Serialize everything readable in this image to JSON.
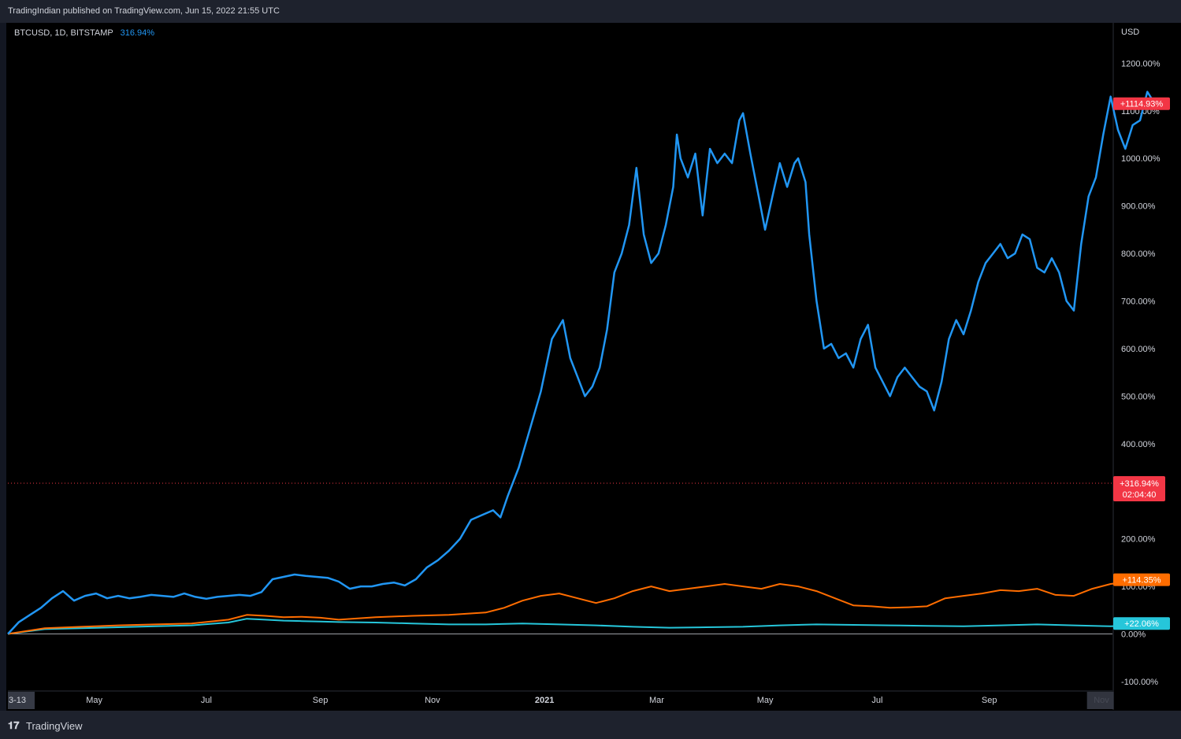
{
  "header": {
    "publisher_text": "TradingIndian published on TradingView.com, Jun 15, 2022 21:55 UTC"
  },
  "legend": {
    "symbol": "BTCUSD, 1D, BITSTAMP",
    "value": "316.94%"
  },
  "footer": {
    "logo_icon": "tradingview-logo-icon",
    "logo_text": "TradingView"
  },
  "colors": {
    "btc": "#2196f3",
    "orange": "#ff6d00",
    "teal": "#26c6da",
    "current_label": "#f23645",
    "axis_bg": "#000000"
  },
  "chart_data": {
    "type": "line",
    "ylabel": "USD",
    "y_ticks": [
      "-100.00%",
      "0.00%",
      "100.00%",
      "200.00%",
      "400.00%",
      "500.00%",
      "600.00%",
      "700.00%",
      "800.00%",
      "900.00%",
      "1000.00%",
      "1100.00%",
      "1200.00%"
    ],
    "y_tick_values": [
      -100,
      0,
      100,
      200,
      400,
      500,
      600,
      700,
      800,
      900,
      1000,
      1100,
      1200
    ],
    "ylim": [
      -120,
      1285
    ],
    "x_ticks": [
      "3-13",
      "May",
      "Jul",
      "Sep",
      "Nov",
      "2021",
      "Mar",
      "May",
      "Jul",
      "Sep",
      "Nov"
    ],
    "x_tick_positions": [
      0,
      47,
      108,
      170,
      231,
      292,
      353,
      412,
      473,
      534,
      595
    ],
    "xlim": [
      0,
      601
    ],
    "series": [
      {
        "name": "BTCUSD",
        "color": "#2196f3",
        "last_label": "+1114.93%",
        "points": [
          [
            0,
            0
          ],
          [
            6,
            25
          ],
          [
            12,
            40
          ],
          [
            18,
            55
          ],
          [
            24,
            75
          ],
          [
            30,
            90
          ],
          [
            36,
            70
          ],
          [
            42,
            80
          ],
          [
            48,
            85
          ],
          [
            54,
            75
          ],
          [
            60,
            80
          ],
          [
            66,
            75
          ],
          [
            72,
            78
          ],
          [
            78,
            82
          ],
          [
            84,
            80
          ],
          [
            90,
            78
          ],
          [
            96,
            85
          ],
          [
            102,
            78
          ],
          [
            108,
            74
          ],
          [
            114,
            78
          ],
          [
            120,
            80
          ],
          [
            126,
            82
          ],
          [
            132,
            80
          ],
          [
            138,
            88
          ],
          [
            144,
            115
          ],
          [
            150,
            120
          ],
          [
            156,
            125
          ],
          [
            162,
            122
          ],
          [
            168,
            120
          ],
          [
            174,
            118
          ],
          [
            180,
            110
          ],
          [
            186,
            95
          ],
          [
            192,
            100
          ],
          [
            198,
            100
          ],
          [
            204,
            105
          ],
          [
            210,
            108
          ],
          [
            216,
            102
          ],
          [
            222,
            115
          ],
          [
            228,
            140
          ],
          [
            234,
            155
          ],
          [
            240,
            175
          ],
          [
            246,
            200
          ],
          [
            252,
            240
          ],
          [
            258,
            250
          ],
          [
            264,
            260
          ],
          [
            268,
            245
          ],
          [
            272,
            290
          ],
          [
            278,
            350
          ],
          [
            284,
            430
          ],
          [
            290,
            510
          ],
          [
            296,
            620
          ],
          [
            302,
            660
          ],
          [
            306,
            580
          ],
          [
            310,
            540
          ],
          [
            314,
            500
          ],
          [
            318,
            520
          ],
          [
            322,
            560
          ],
          [
            326,
            640
          ],
          [
            330,
            760
          ],
          [
            334,
            800
          ],
          [
            338,
            860
          ],
          [
            342,
            980
          ],
          [
            346,
            840
          ],
          [
            350,
            780
          ],
          [
            354,
            800
          ],
          [
            358,
            860
          ],
          [
            362,
            940
          ],
          [
            364,
            1050
          ],
          [
            366,
            1000
          ],
          [
            370,
            960
          ],
          [
            374,
            1010
          ],
          [
            378,
            880
          ],
          [
            382,
            1020
          ],
          [
            386,
            990
          ],
          [
            390,
            1010
          ],
          [
            394,
            990
          ],
          [
            398,
            1080
          ],
          [
            400,
            1095
          ],
          [
            404,
            1010
          ],
          [
            408,
            930
          ],
          [
            412,
            850
          ],
          [
            416,
            920
          ],
          [
            420,
            990
          ],
          [
            424,
            940
          ],
          [
            428,
            990
          ],
          [
            430,
            1000
          ],
          [
            434,
            950
          ],
          [
            436,
            840
          ],
          [
            440,
            700
          ],
          [
            444,
            600
          ],
          [
            448,
            610
          ],
          [
            452,
            580
          ],
          [
            456,
            590
          ],
          [
            460,
            560
          ],
          [
            464,
            620
          ],
          [
            468,
            650
          ],
          [
            472,
            560
          ],
          [
            476,
            530
          ],
          [
            480,
            500
          ],
          [
            484,
            540
          ],
          [
            488,
            560
          ],
          [
            492,
            540
          ],
          [
            496,
            520
          ],
          [
            500,
            510
          ],
          [
            504,
            470
          ],
          [
            508,
            530
          ],
          [
            512,
            620
          ],
          [
            516,
            660
          ],
          [
            520,
            630
          ],
          [
            524,
            680
          ],
          [
            528,
            740
          ],
          [
            532,
            780
          ],
          [
            536,
            800
          ],
          [
            540,
            820
          ],
          [
            544,
            790
          ],
          [
            548,
            800
          ],
          [
            552,
            840
          ],
          [
            556,
            830
          ],
          [
            560,
            770
          ],
          [
            564,
            760
          ],
          [
            568,
            790
          ],
          [
            572,
            760
          ],
          [
            576,
            700
          ],
          [
            580,
            680
          ],
          [
            584,
            820
          ],
          [
            588,
            920
          ],
          [
            592,
            960
          ],
          [
            596,
            1050
          ],
          [
            600,
            1130
          ],
          [
            604,
            1060
          ],
          [
            608,
            1020
          ],
          [
            612,
            1070
          ],
          [
            616,
            1080
          ],
          [
            620,
            1140
          ],
          [
            624,
            1115
          ]
        ]
      },
      {
        "name": "",
        "color": "#ff6d00",
        "last_label": "+114.35%",
        "points": [
          [
            0,
            0
          ],
          [
            20,
            12
          ],
          [
            40,
            15
          ],
          [
            60,
            18
          ],
          [
            80,
            20
          ],
          [
            100,
            22
          ],
          [
            120,
            30
          ],
          [
            130,
            40
          ],
          [
            140,
            38
          ],
          [
            150,
            35
          ],
          [
            160,
            36
          ],
          [
            170,
            34
          ],
          [
            180,
            30
          ],
          [
            200,
            35
          ],
          [
            220,
            38
          ],
          [
            240,
            40
          ],
          [
            260,
            45
          ],
          [
            270,
            55
          ],
          [
            280,
            70
          ],
          [
            290,
            80
          ],
          [
            300,
            85
          ],
          [
            310,
            75
          ],
          [
            320,
            65
          ],
          [
            330,
            75
          ],
          [
            340,
            90
          ],
          [
            350,
            100
          ],
          [
            360,
            90
          ],
          [
            370,
            95
          ],
          [
            380,
            100
          ],
          [
            390,
            105
          ],
          [
            400,
            100
          ],
          [
            410,
            95
          ],
          [
            420,
            105
          ],
          [
            430,
            100
          ],
          [
            440,
            90
          ],
          [
            450,
            75
          ],
          [
            460,
            60
          ],
          [
            470,
            58
          ],
          [
            480,
            55
          ],
          [
            490,
            56
          ],
          [
            500,
            58
          ],
          [
            510,
            75
          ],
          [
            520,
            80
          ],
          [
            530,
            85
          ],
          [
            540,
            92
          ],
          [
            550,
            90
          ],
          [
            560,
            95
          ],
          [
            570,
            82
          ],
          [
            580,
            80
          ],
          [
            590,
            95
          ],
          [
            600,
            105
          ],
          [
            610,
            110
          ],
          [
            618,
            108
          ],
          [
            624,
            114
          ]
        ]
      },
      {
        "name": "",
        "color": "#26c6da",
        "last_label": "+22.06%",
        "points": [
          [
            0,
            0
          ],
          [
            20,
            10
          ],
          [
            40,
            12
          ],
          [
            60,
            14
          ],
          [
            80,
            16
          ],
          [
            100,
            18
          ],
          [
            120,
            24
          ],
          [
            130,
            32
          ],
          [
            140,
            30
          ],
          [
            150,
            28
          ],
          [
            160,
            27
          ],
          [
            170,
            26
          ],
          [
            180,
            25
          ],
          [
            200,
            24
          ],
          [
            220,
            22
          ],
          [
            240,
            20
          ],
          [
            260,
            20
          ],
          [
            280,
            22
          ],
          [
            300,
            20
          ],
          [
            320,
            18
          ],
          [
            340,
            15
          ],
          [
            360,
            13
          ],
          [
            380,
            14
          ],
          [
            400,
            15
          ],
          [
            420,
            18
          ],
          [
            440,
            20
          ],
          [
            460,
            19
          ],
          [
            480,
            18
          ],
          [
            500,
            17
          ],
          [
            520,
            16
          ],
          [
            540,
            18
          ],
          [
            560,
            20
          ],
          [
            580,
            18
          ],
          [
            600,
            16
          ],
          [
            612,
            18
          ],
          [
            624,
            22
          ]
        ]
      }
    ],
    "price_line": {
      "value": 316.94,
      "label": "+316.94%",
      "countdown": "02:04:40"
    }
  }
}
